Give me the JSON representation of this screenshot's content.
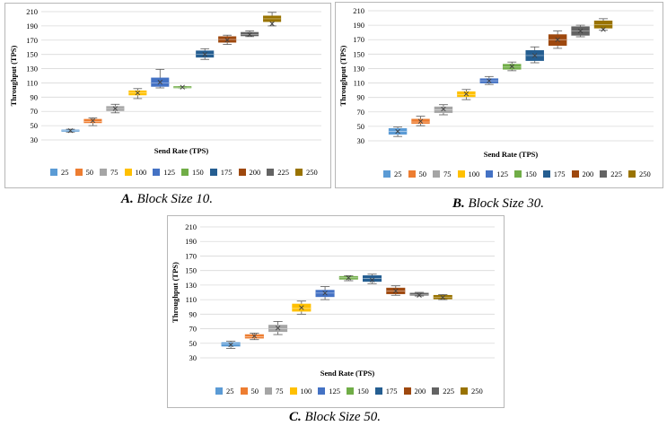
{
  "colors": {
    "series": [
      "#5b9bd5",
      "#ed7d31",
      "#a5a5a5",
      "#ffc000",
      "#4472c4",
      "#70ad47",
      "#255e91",
      "#9e480e",
      "#636363",
      "#997300"
    ],
    "grid": "#d9d9d9",
    "axis_text": "#595959"
  },
  "chart_data": [
    {
      "id": "a",
      "type": "box",
      "caption_letter": "A.",
      "caption_text": "Block Size 10.",
      "xlabel": "Send Rate (TPS)",
      "ylabel": "Throughput (TPS)",
      "ylim": [
        30,
        210
      ],
      "yticks": [
        "30",
        "50",
        "70",
        "90",
        "110",
        "130",
        "150",
        "170",
        "190",
        "210"
      ],
      "legend": [
        "25",
        "50",
        "75",
        "100",
        "125",
        "150",
        "175",
        "200",
        "225",
        "250"
      ],
      "series": [
        {
          "name": "25",
          "min": 41,
          "q1": 42,
          "median": 43,
          "q3": 44,
          "max": 45,
          "mean": 43
        },
        {
          "name": "50",
          "min": 50,
          "q1": 54,
          "median": 56,
          "q3": 59,
          "max": 61,
          "mean": 57
        },
        {
          "name": "75",
          "min": 68,
          "q1": 71,
          "median": 74,
          "q3": 77,
          "max": 80,
          "mean": 74
        },
        {
          "name": "100",
          "min": 88,
          "q1": 93,
          "median": 96,
          "q3": 99,
          "max": 102,
          "mean": 96
        },
        {
          "name": "125",
          "min": 103,
          "q1": 105,
          "median": 110,
          "q3": 117,
          "max": 129,
          "mean": 111
        },
        {
          "name": "150",
          "min": 103,
          "q1": 103,
          "median": 104,
          "q3": 105,
          "max": 105,
          "mean": 104
        },
        {
          "name": "175",
          "min": 143,
          "q1": 146,
          "median": 150,
          "q3": 155,
          "max": 158,
          "mean": 150
        },
        {
          "name": "200",
          "min": 164,
          "q1": 167,
          "median": 171,
          "q3": 175,
          "max": 177,
          "mean": 170
        },
        {
          "name": "225",
          "min": 175,
          "q1": 176,
          "median": 178,
          "q3": 181,
          "max": 183,
          "mean": 178
        },
        {
          "name": "250",
          "min": 190,
          "q1": 196,
          "median": 200,
          "q3": 204,
          "max": 209,
          "mean": 193
        }
      ]
    },
    {
      "id": "b",
      "type": "box",
      "caption_letter": "B.",
      "caption_text": "Block Size 30.",
      "xlabel": "Send Rate (TPS)",
      "ylabel": "Throughput (TPS)",
      "ylim": [
        30,
        210
      ],
      "yticks": [
        "30",
        "50",
        "70",
        "90",
        "110",
        "130",
        "150",
        "170",
        "190",
        "210"
      ],
      "legend": [
        "25",
        "50",
        "75",
        "100",
        "125",
        "150",
        "175",
        "200",
        "225",
        "250"
      ],
      "series": [
        {
          "name": "25",
          "min": 36,
          "q1": 39,
          "median": 43,
          "q3": 47,
          "max": 49,
          "mean": 43
        },
        {
          "name": "50",
          "min": 51,
          "q1": 54,
          "median": 56,
          "q3": 60,
          "max": 64,
          "mean": 57
        },
        {
          "name": "75",
          "min": 66,
          "q1": 69,
          "median": 73,
          "q3": 77,
          "max": 80,
          "mean": 74
        },
        {
          "name": "100",
          "min": 87,
          "q1": 91,
          "median": 94,
          "q3": 98,
          "max": 101,
          "mean": 95
        },
        {
          "name": "125",
          "min": 108,
          "q1": 110,
          "median": 113,
          "q3": 116,
          "max": 119,
          "mean": 113
        },
        {
          "name": "150",
          "min": 127,
          "q1": 129,
          "median": 132,
          "q3": 136,
          "max": 139,
          "mean": 133
        },
        {
          "name": "175",
          "min": 138,
          "q1": 141,
          "median": 148,
          "q3": 155,
          "max": 160,
          "mean": 148
        },
        {
          "name": "200",
          "min": 158,
          "q1": 162,
          "median": 170,
          "q3": 177,
          "max": 182,
          "mean": 170
        },
        {
          "name": "225",
          "min": 174,
          "q1": 176,
          "median": 182,
          "q3": 188,
          "max": 190,
          "mean": 182
        },
        {
          "name": "250",
          "min": 183,
          "q1": 186,
          "median": 191,
          "q3": 196,
          "max": 199,
          "mean": 184
        }
      ]
    },
    {
      "id": "c",
      "type": "box",
      "caption_letter": "C.",
      "caption_text": "Block Size 50.",
      "xlabel": "Send Rate (TPS)",
      "ylabel": "Throughput (TPS)",
      "ylim": [
        30,
        210
      ],
      "yticks": [
        "30",
        "50",
        "70",
        "90",
        "110",
        "130",
        "150",
        "170",
        "190",
        "210"
      ],
      "legend": [
        "25",
        "50",
        "75",
        "100",
        "125",
        "150",
        "175",
        "200",
        "225",
        "250"
      ],
      "series": [
        {
          "name": "25",
          "min": 43,
          "q1": 46,
          "median": 49,
          "q3": 51,
          "max": 53,
          "mean": 48
        },
        {
          "name": "50",
          "min": 55,
          "q1": 57,
          "median": 59,
          "q3": 62,
          "max": 64,
          "mean": 60
        },
        {
          "name": "75",
          "min": 62,
          "q1": 66,
          "median": 70,
          "q3": 75,
          "max": 80,
          "mean": 71
        },
        {
          "name": "100",
          "min": 90,
          "q1": 94,
          "median": 98,
          "q3": 104,
          "max": 108,
          "mean": 99
        },
        {
          "name": "125",
          "min": 110,
          "q1": 114,
          "median": 119,
          "q3": 123,
          "max": 128,
          "mean": 119
        },
        {
          "name": "150",
          "min": 136,
          "q1": 138,
          "median": 140,
          "q3": 142,
          "max": 143,
          "mean": 140
        },
        {
          "name": "175",
          "min": 132,
          "q1": 135,
          "median": 139,
          "q3": 143,
          "max": 145,
          "mean": 137
        },
        {
          "name": "200",
          "min": 116,
          "q1": 118,
          "median": 122,
          "q3": 126,
          "max": 129,
          "mean": 122
        },
        {
          "name": "225",
          "min": 115,
          "q1": 116,
          "median": 117,
          "q3": 119,
          "max": 120,
          "mean": 116
        },
        {
          "name": "250",
          "min": 110,
          "q1": 111,
          "median": 113,
          "q3": 116,
          "max": 117,
          "mean": 113
        }
      ]
    }
  ]
}
